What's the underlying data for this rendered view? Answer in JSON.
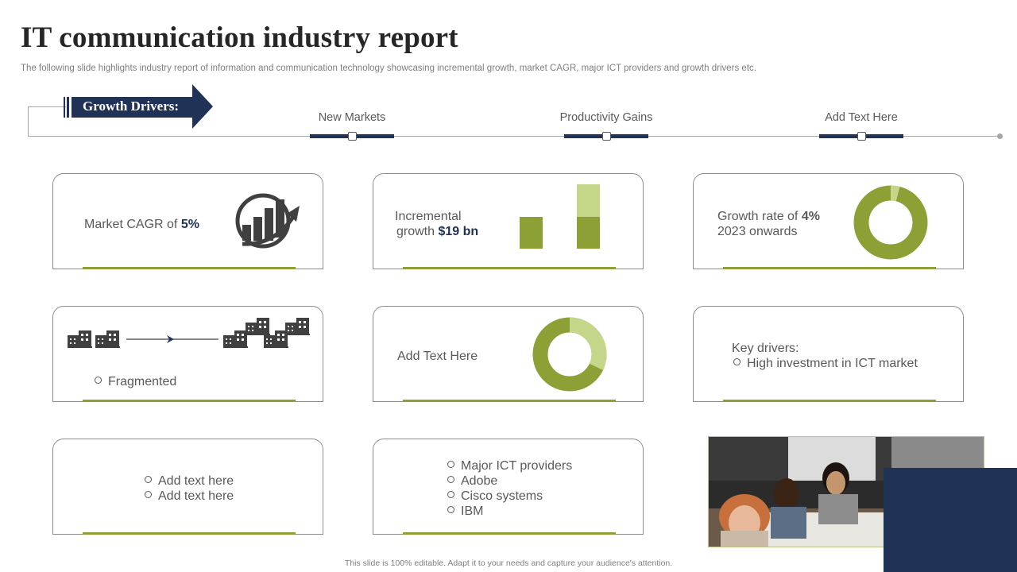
{
  "title": "IT communication industry report",
  "subtitle": "The following slide highlights industry report of information and communication technology showcasing incremental growth, market CAGR, major ICT providers and growth drivers  etc.",
  "growth_drivers": {
    "label": "Growth Drivers:",
    "items": [
      "New Markets",
      "Productivity Gains",
      "Add Text Here"
    ]
  },
  "cards": {
    "cagr": {
      "label": "Market CAGR of ",
      "value": "5%"
    },
    "incremental": {
      "line1": "Incremental",
      "line2": "growth ",
      "value": "$19 bn"
    },
    "growth_rate": {
      "label": "Growth rate of ",
      "value": "4%",
      "line2": "2023 onwards",
      "percent": 4
    },
    "fragmented": {
      "label": "Fragmented"
    },
    "add_text": {
      "label": "Add Text Here",
      "percent": 32
    },
    "key_drivers": {
      "heading": "Key drivers:",
      "item": "High investment  in ICT market"
    },
    "add_text_list": [
      "Add text here",
      "Add text here"
    ],
    "providers": [
      "Major ICT providers",
      "Adobe",
      "Cisco systems",
      "IBM"
    ]
  },
  "colors": {
    "navy": "#213257",
    "green": "#8ca035",
    "light_green": "#c3d68a"
  },
  "footer": "This slide is 100% editable.  Adapt it to your needs and capture your audience's attention."
}
